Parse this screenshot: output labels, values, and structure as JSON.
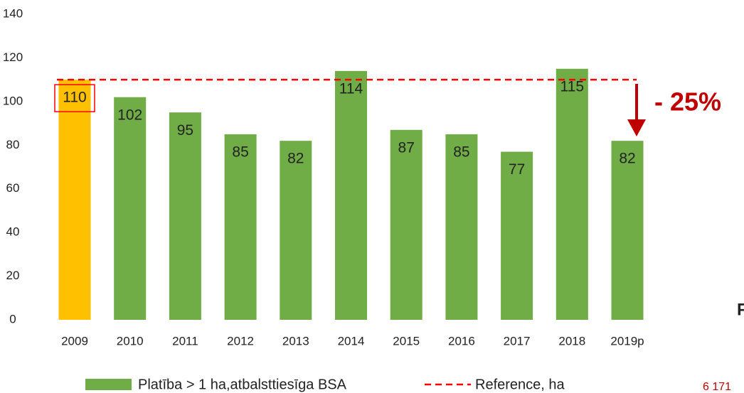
{
  "chart_data": {
    "type": "bar",
    "categories": [
      "2009",
      "2010",
      "2011",
      "2012",
      "2013",
      "2014",
      "2015",
      "2016",
      "2017",
      "2018",
      "2019p"
    ],
    "series": [
      {
        "name": "Platība > 1 ha,atbalsttiesīga BSA",
        "color": "#70ad47",
        "values": [
          110,
          102,
          95,
          85,
          82,
          114,
          87,
          85,
          77,
          115,
          82
        ]
      }
    ],
    "highlight": {
      "index": 0,
      "color": "#ffc000"
    },
    "reference": {
      "name": "Reference, ha",
      "value": 110,
      "color": "#ff0000"
    },
    "ylim": [
      0,
      140
    ],
    "yticks": [
      0,
      20,
      40,
      60,
      80,
      100,
      120,
      140
    ],
    "grid": false,
    "annotations": [
      "- 25%",
      "F",
      "6 171"
    ]
  }
}
